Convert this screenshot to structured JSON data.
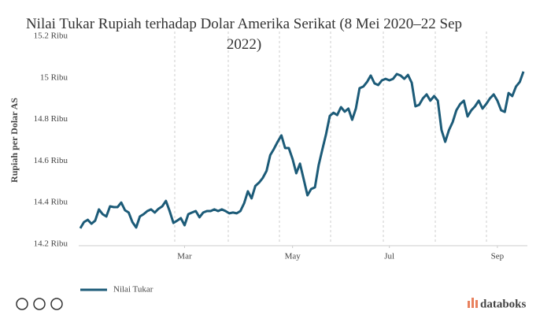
{
  "chart_data": {
    "type": "line",
    "title": "Nilai Tukar Rupiah terhadap Dolar Amerika Serikat (8 Mei 2020–22 Sep 2022)",
    "y_label": "Rupiah per Dolar AS",
    "brand": "databoks",
    "ylim": [
      14200,
      15200
    ],
    "yticks": [
      {
        "value": 14200,
        "label": "14.2 Ribu"
      },
      {
        "value": 14400,
        "label": "14.4 Ribu"
      },
      {
        "value": 14600,
        "label": "14.6 Ribu"
      },
      {
        "value": 14800,
        "label": "14.8 Ribu"
      },
      {
        "value": 15000,
        "label": "15 Ribu"
      },
      {
        "value": 15200,
        "label": "15.2 Ribu"
      }
    ],
    "categories": [
      null,
      null,
      null,
      null,
      null,
      null,
      null,
      null,
      null,
      null,
      null,
      null,
      null,
      null,
      null,
      null,
      null,
      null,
      null,
      null,
      null,
      null,
      null,
      null,
      null,
      null,
      null,
      null,
      "Mar",
      null,
      null,
      null,
      null,
      null,
      null,
      null,
      null,
      null,
      null,
      null,
      null,
      null,
      null,
      null,
      null,
      null,
      null,
      null,
      null,
      null,
      null,
      null,
      null,
      null,
      null,
      null,
      null,
      "May",
      null,
      null,
      null,
      null,
      null,
      null,
      null,
      null,
      null,
      null,
      null,
      null,
      null,
      null,
      null,
      null,
      null,
      null,
      null,
      null,
      null,
      null,
      null,
      null,
      null,
      "Jul",
      null,
      null,
      null,
      null,
      null,
      null,
      null,
      null,
      null,
      null,
      null,
      null,
      null,
      null,
      null,
      null,
      null,
      null,
      null,
      null,
      null,
      null,
      null,
      null,
      null,
      null,
      null,
      null,
      "Sep",
      null,
      null,
      null,
      null,
      null,
      null,
      null
    ],
    "series": [
      {
        "name": "Nilai Tukar",
        "color": "#1c5b78",
        "values": [
          14276,
          14306,
          14317,
          14298,
          14313,
          14367,
          14344,
          14333,
          14382,
          14378,
          14378,
          14400,
          14363,
          14352,
          14306,
          14280,
          14333,
          14344,
          14359,
          14367,
          14352,
          14370,
          14382,
          14408,
          14359,
          14302,
          14313,
          14325,
          14291,
          14344,
          14352,
          14359,
          14329,
          14352,
          14359,
          14359,
          14367,
          14359,
          14367,
          14359,
          14348,
          14352,
          14348,
          14359,
          14397,
          14454,
          14420,
          14480,
          14496,
          14518,
          14552,
          14628,
          14658,
          14692,
          14723,
          14662,
          14662,
          14609,
          14541,
          14587,
          14511,
          14435,
          14465,
          14473,
          14579,
          14655,
          14730,
          14817,
          14832,
          14821,
          14859,
          14837,
          14852,
          14798,
          14852,
          14950,
          14958,
          14980,
          15011,
          14973,
          14965,
          14988,
          14995,
          14988,
          14995,
          15018,
          15011,
          14995,
          15014,
          14976,
          14863,
          14870,
          14901,
          14920,
          14890,
          14912,
          14890,
          14749,
          14692,
          14749,
          14787,
          14844,
          14874,
          14890,
          14814,
          14844,
          14863,
          14890,
          14852,
          14874,
          14901,
          14920,
          14890,
          14844,
          14836,
          14927,
          14912,
          14958,
          14980,
          15030
        ]
      }
    ],
    "grid": true
  }
}
